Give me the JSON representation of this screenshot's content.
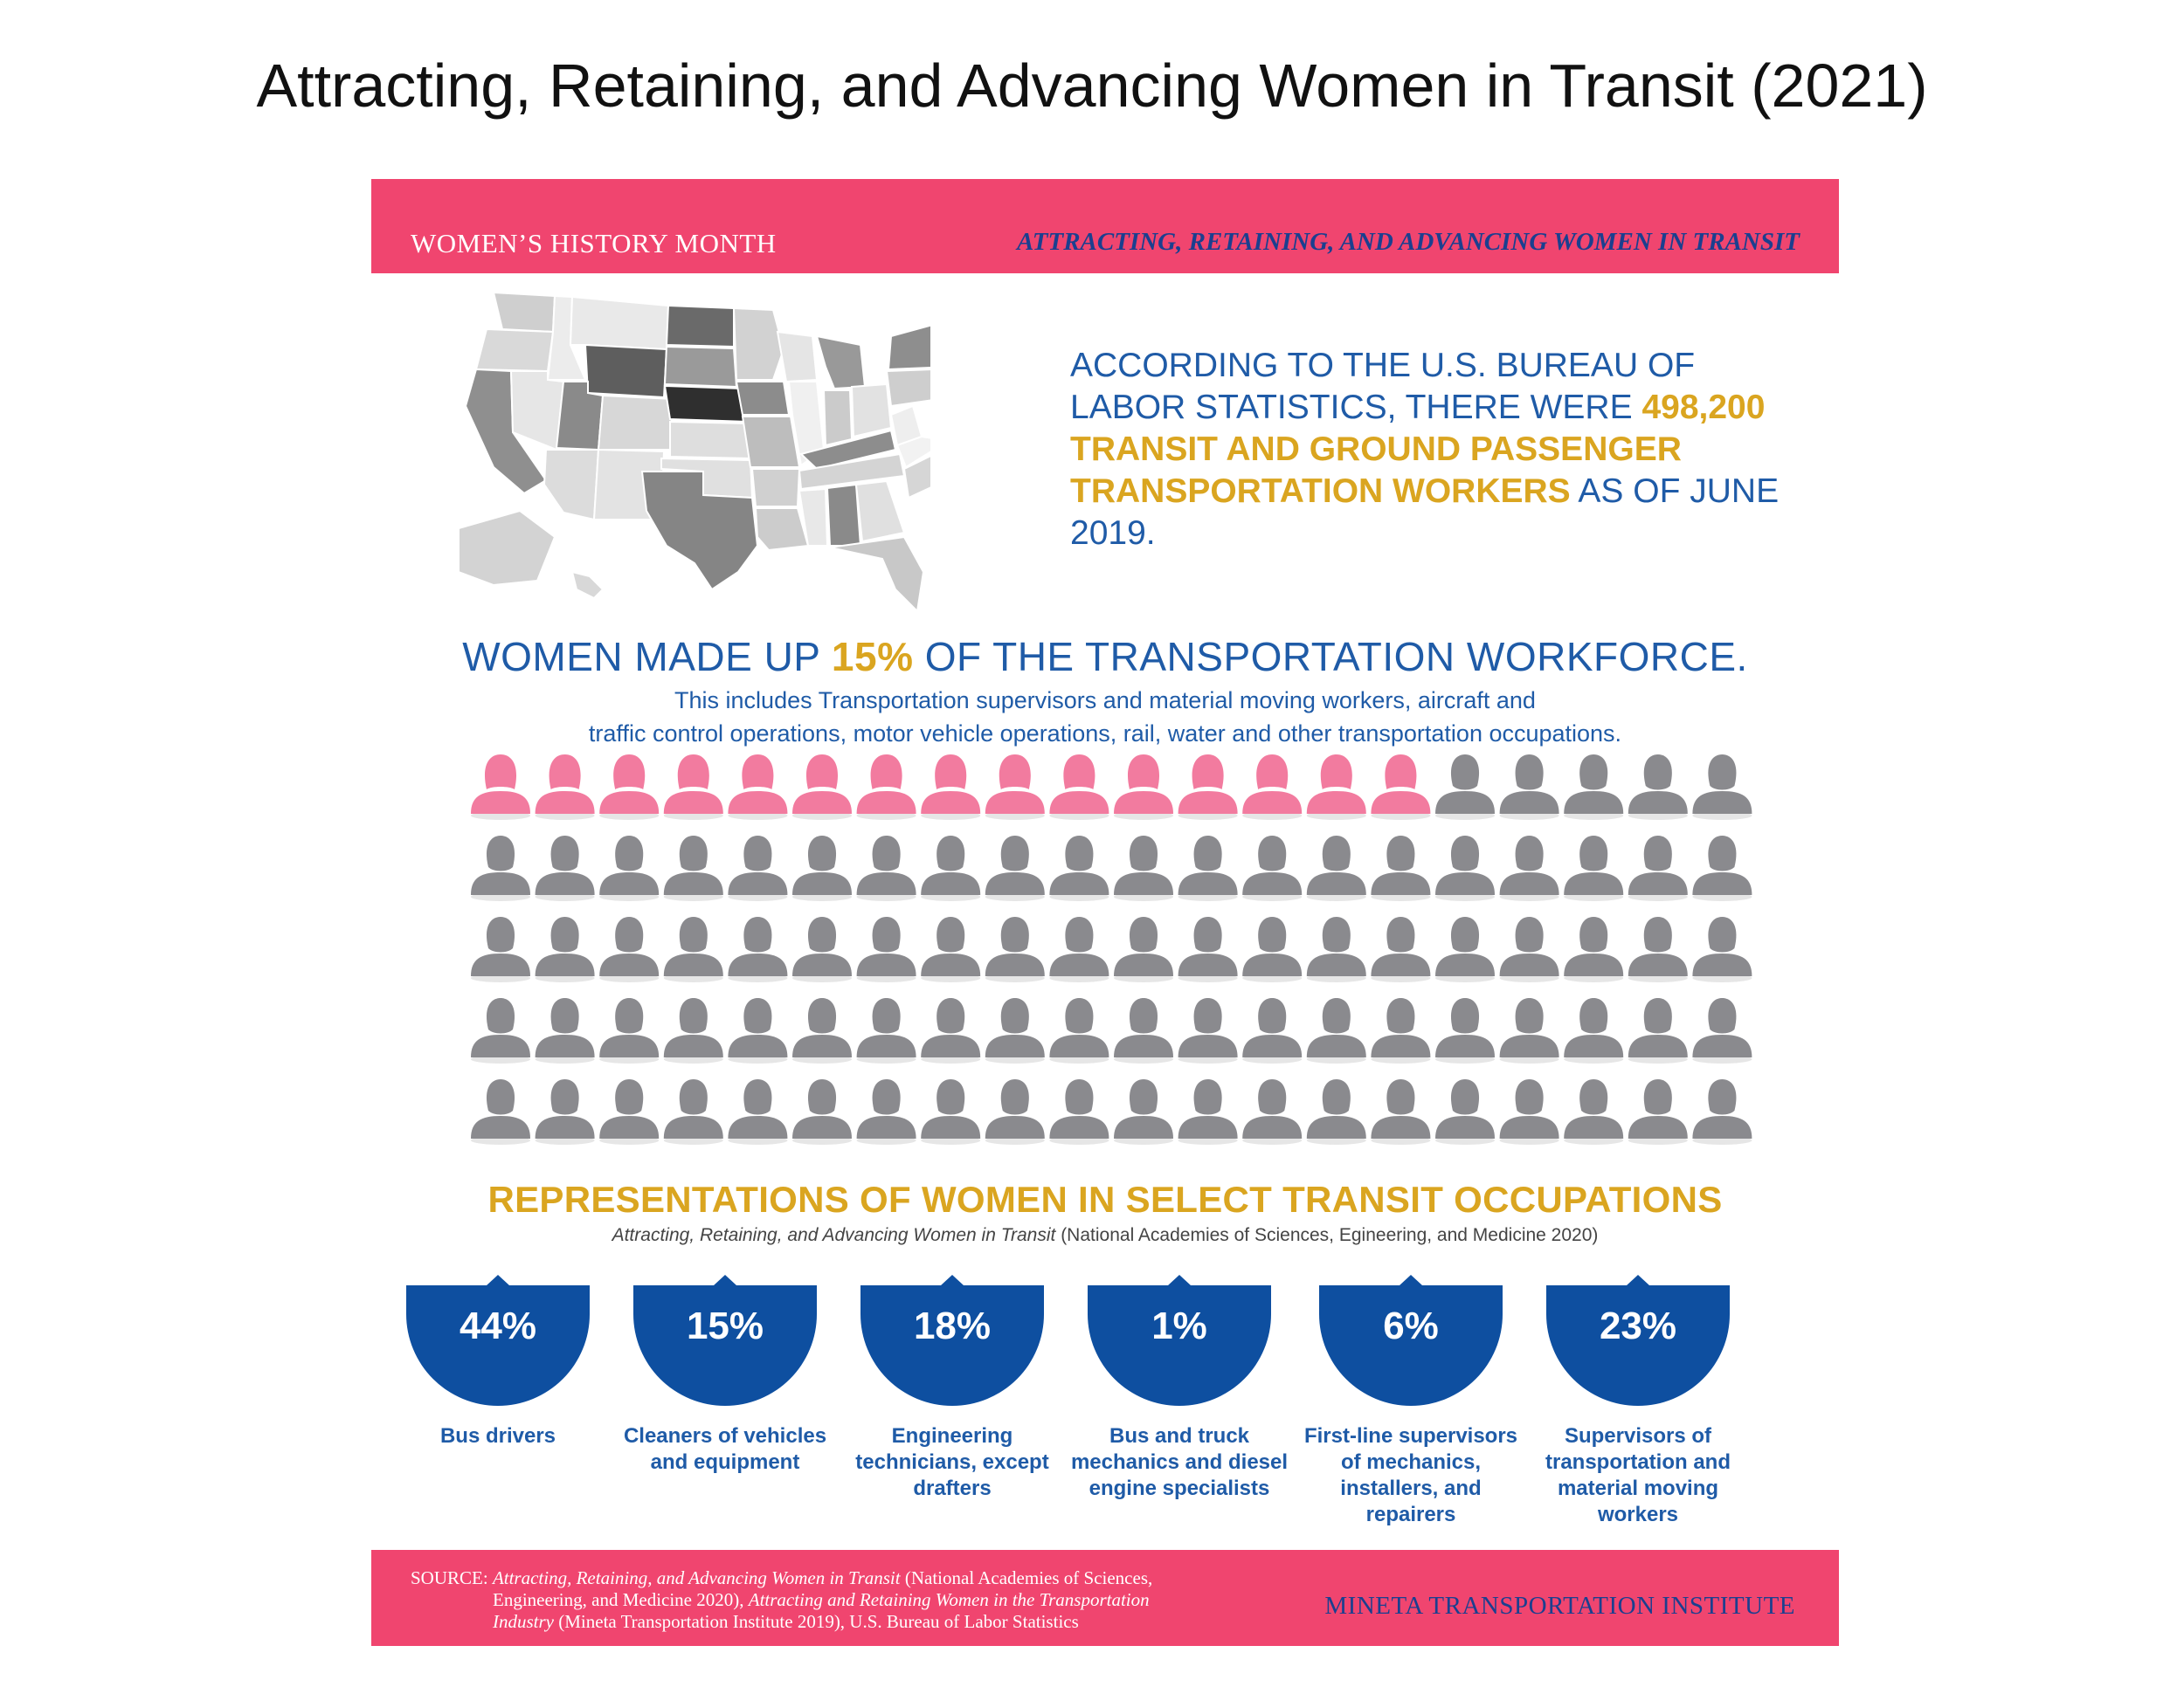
{
  "page_title": "Attracting, Retaining, and Advancing Women in Transit (2021)",
  "top_banner": {
    "left": "WOMEN’S HISTORY MONTH",
    "right": "ATTRACTING, RETAINING, AND ADVANCING WOMEN IN TRANSIT"
  },
  "stat": {
    "line1": "ACCORDING TO THE U.S. BUREAU OF LABOR STATISTICS, THERE WERE ",
    "highlight": "498,200 TRANSIT AND GROUND PASSENGER TRANSPORTATION WORKERS",
    "line2": " AS OF JUNE 2019."
  },
  "workforce": {
    "pre": "WOMEN MADE UP ",
    "pct": "15%",
    "post": " OF THE TRANSPORTATION WORKFORCE.",
    "sub1": "This includes Transportation supervisors and material moving workers, aircraft and",
    "sub2": "traffic control operations, motor vehicle operations, rail, water and other transportation occupations."
  },
  "people_grid": {
    "rows": 5,
    "cols": 20,
    "women": 15,
    "women_color": "#f27b9f",
    "men_color": "#8a8a8e"
  },
  "occupations": {
    "title": "REPRESENTATIONS OF WOMEN IN SELECT TRANSIT OCCUPATIONS",
    "citation_italic": "Attracting, Retaining, and Advancing Women in Transit",
    "citation_rest": " (National Academies of Sciences, Egineering, and Medicine 2020)",
    "items": [
      {
        "pct": "44%",
        "label": "Bus drivers"
      },
      {
        "pct": "15%",
        "label": "Cleaners of vehicles and equipment"
      },
      {
        "pct": "18%",
        "label": "Engineering technicians, except drafters"
      },
      {
        "pct": "1%",
        "label": "Bus and truck mechanics and diesel engine specialists"
      },
      {
        "pct": "6%",
        "label": "First-line supervisors of mechanics, installers, and repairers"
      },
      {
        "pct": "23%",
        "label": "Supervisors of transportation and material moving workers"
      }
    ]
  },
  "source": {
    "label": "SOURCE: ",
    "t1_italic": "Attracting, Retaining, and Advancing Women in Transit",
    "t1_rest": " (National Academies of Sciences,",
    "t2_a": "Engineering, and Medicine 2020), ",
    "t2_italic": "Attracting and Retaining Women in the Transportation",
    "t3_italic": "Industry",
    "t3_rest": " (Mineta Transportation Institute 2019), U.S. Bureau of Labor Statistics"
  },
  "institute": "MINETA TRANSPORTATION INSTITUTE",
  "colors": {
    "pink": "#f0456f",
    "navy": "#1b3f8f",
    "blue": "#1f5ba7",
    "gold": "#daa520",
    "bowl": "#0e4fa0"
  }
}
